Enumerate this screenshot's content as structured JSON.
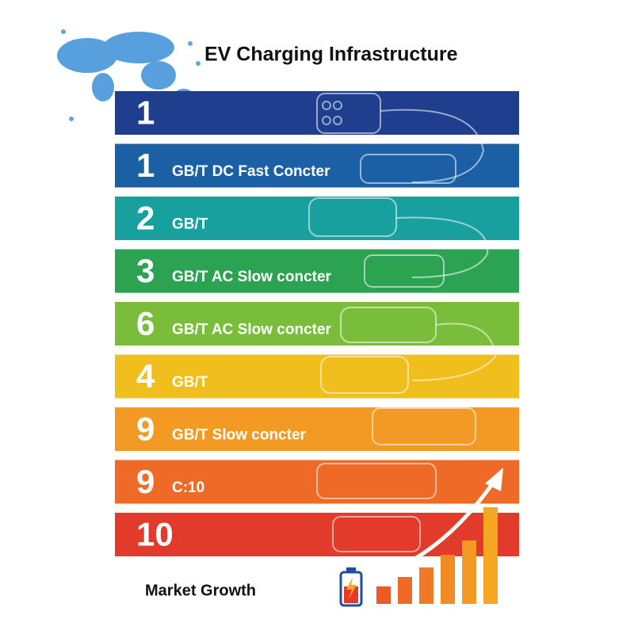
{
  "header": {
    "title": "EV Charging Infrastructure"
  },
  "rows": [
    {
      "number": "1",
      "label": null,
      "color": "#1f3f8e"
    },
    {
      "number": "1",
      "label": "GB/T DC Fast Concter",
      "color": "#1b5fa5"
    },
    {
      "number": "2",
      "label": "GB/T",
      "color": "#17a09e"
    },
    {
      "number": "3",
      "label": "GB/T AC Slow concter",
      "color": "#2ba353"
    },
    {
      "number": "6",
      "label": "GB/T AC Slow concter",
      "color": "#7abd3b"
    },
    {
      "number": "4",
      "label": "GB/T",
      "color": "#f0bf1e"
    },
    {
      "number": "9",
      "label": "GB/T Slow concter",
      "color": "#f39a25"
    },
    {
      "number": "9",
      "label": "C:10",
      "color": "#ee6a26"
    },
    {
      "number": "10",
      "label": null,
      "color": "#e23b2b"
    }
  ],
  "footer": {
    "label": "Market Growth"
  }
}
